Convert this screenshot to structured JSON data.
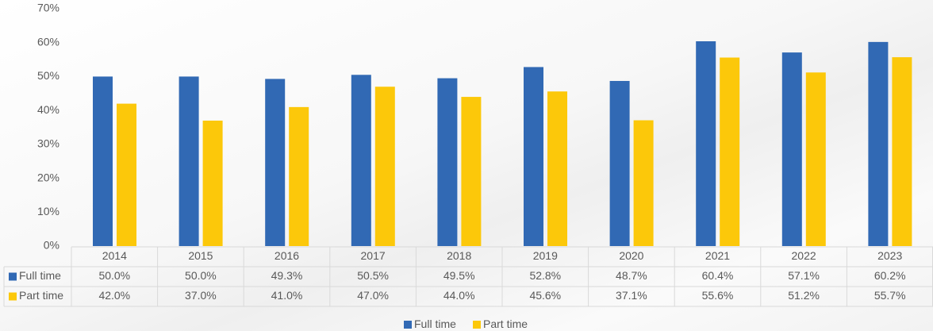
{
  "chart_data": {
    "type": "bar",
    "categories": [
      "2014",
      "2015",
      "2016",
      "2017",
      "2018",
      "2019",
      "2020",
      "2021",
      "2022",
      "2023"
    ],
    "series": [
      {
        "name": "Full time",
        "color": "#3169b4",
        "values": [
          50.0,
          50.0,
          49.3,
          50.5,
          49.5,
          52.8,
          48.7,
          60.4,
          57.1,
          60.2
        ],
        "value_labels": [
          "50.0%",
          "50.0%",
          "49.3%",
          "50.5%",
          "49.5%",
          "52.8%",
          "48.7%",
          "60.4%",
          "57.1%",
          "60.2%"
        ]
      },
      {
        "name": "Part time",
        "color": "#fcc80a",
        "values": [
          42.0,
          37.0,
          41.0,
          47.0,
          44.0,
          45.6,
          37.1,
          55.6,
          51.2,
          55.7
        ],
        "value_labels": [
          "42.0%",
          "37.0%",
          "41.0%",
          "47.0%",
          "44.0%",
          "45.6%",
          "37.1%",
          "55.6%",
          "51.2%",
          "55.7%"
        ]
      }
    ],
    "ylim": [
      0,
      70
    ],
    "yticks": [
      {
        "value": 0,
        "label": "0%"
      },
      {
        "value": 10,
        "label": "10%"
      },
      {
        "value": 20,
        "label": "20%"
      },
      {
        "value": 30,
        "label": "30%"
      },
      {
        "value": 40,
        "label": "40%"
      },
      {
        "value": 50,
        "label": "50%"
      },
      {
        "value": 60,
        "label": "60%"
      },
      {
        "value": 70,
        "label": "70%"
      }
    ],
    "grid": false,
    "legend": "bottom"
  }
}
